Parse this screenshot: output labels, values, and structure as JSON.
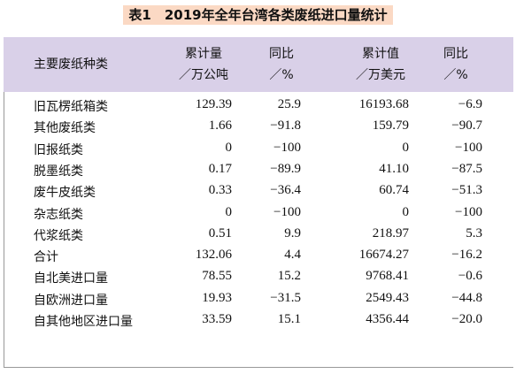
{
  "title": {
    "label": "表1",
    "text": "2019年全年台湾各类废纸进口量统计"
  },
  "table": {
    "header": [
      [
        "主要废纸种类"
      ],
      [
        "累计量",
        "／万公吨"
      ],
      [
        "同比",
        "／%"
      ],
      [
        "累计值",
        "／万美元"
      ],
      [
        "同比",
        "／%"
      ]
    ],
    "rows": [
      [
        "旧瓦楞纸箱类",
        "129.39",
        "25.9",
        "16193.68",
        "−6.9"
      ],
      [
        "其他废纸类",
        "1.66",
        "−91.8",
        "159.79",
        "−90.7"
      ],
      [
        "旧报纸类",
        "0",
        "−100",
        "0",
        "−100"
      ],
      [
        "脱墨纸类",
        "0.17",
        "−89.9",
        "41.10",
        "−87.5"
      ],
      [
        "废牛皮纸类",
        "0.33",
        "−36.4",
        "60.74",
        "−51.3"
      ],
      [
        "杂志纸类",
        "0",
        "−100",
        "0",
        "−100"
      ],
      [
        "代浆纸类",
        "0.51",
        "9.9",
        "218.97",
        "5.3"
      ],
      [
        "合计",
        "132.06",
        "4.4",
        "16674.27",
        "−16.2"
      ],
      [
        "自北美进口量",
        "78.55",
        "15.2",
        "9768.41",
        "−0.6"
      ],
      [
        "自欧洲进口量",
        "19.93",
        "−31.5",
        "2549.43",
        "−44.8"
      ],
      [
        "自其他地区进口量",
        "33.59",
        "15.1",
        "4356.44",
        "−20.0"
      ]
    ]
  }
}
